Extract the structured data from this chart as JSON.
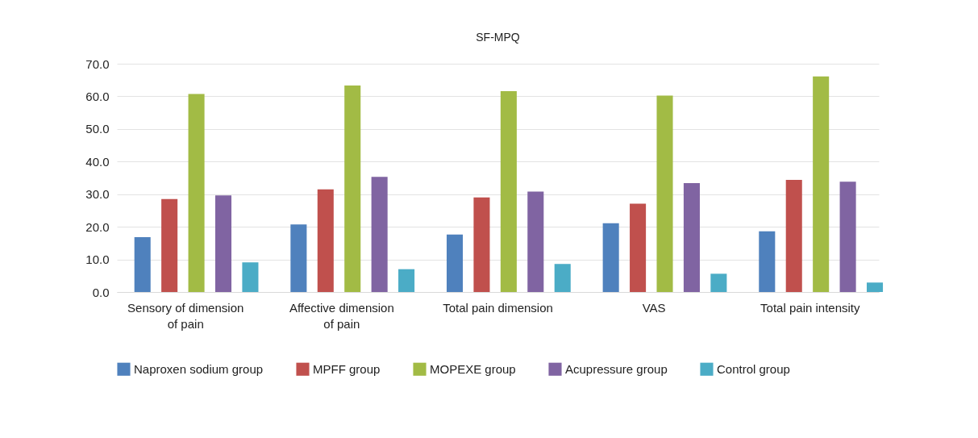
{
  "chart_data": {
    "type": "bar",
    "title": "SF-MPQ",
    "categories": [
      "Sensory of dimension of pain",
      "Affective dimension of pain",
      "Total pain dimension",
      "VAS",
      "Total pain intensity"
    ],
    "series": [
      {
        "name": "Naproxen sodium group",
        "color": "#4f81bd",
        "values": [
          16.8,
          20.7,
          17.6,
          21.1,
          18.6
        ]
      },
      {
        "name": "MPFF group",
        "color": "#c0504d",
        "values": [
          28.5,
          31.5,
          29.0,
          27.1,
          34.4
        ]
      },
      {
        "name": "MOPEXE group",
        "color": "#a2bb45",
        "values": [
          60.7,
          63.3,
          61.6,
          60.2,
          66.1
        ]
      },
      {
        "name": "Acupressure group",
        "color": "#8064a2",
        "values": [
          29.6,
          35.3,
          30.8,
          33.4,
          33.8
        ]
      },
      {
        "name": "Control group",
        "color": "#4bacc6",
        "values": [
          9.1,
          7.0,
          8.6,
          5.6,
          2.9
        ]
      }
    ],
    "ylim": [
      0,
      70
    ],
    "yticks": [
      {
        "value": 0,
        "label": "0.0"
      },
      {
        "value": 10,
        "label": "10.0"
      },
      {
        "value": 20,
        "label": "20.0"
      },
      {
        "value": 30,
        "label": "30.0"
      },
      {
        "value": 40,
        "label": "40.0"
      },
      {
        "value": 50,
        "label": "50.0"
      },
      {
        "value": 60,
        "label": "60.0"
      },
      {
        "value": 70,
        "label": "70.0"
      }
    ],
    "grid": "y",
    "legend": "bottom"
  }
}
